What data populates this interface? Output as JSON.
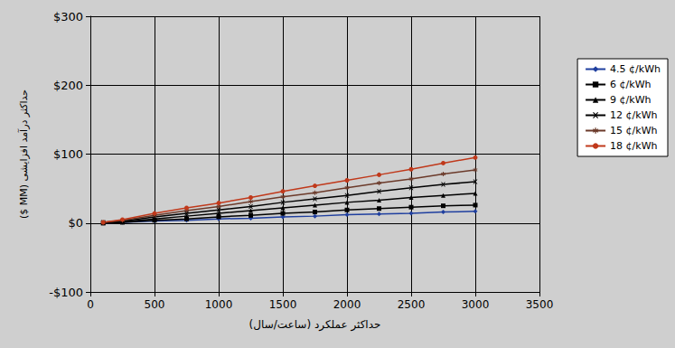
{
  "chart_data": {
    "type": "line",
    "x_label": "حداکثر عملکرد (ساعت/سال)",
    "y_label": "($ MM) حداکثر درآمد افزایشی",
    "x": [
      100,
      250,
      500,
      750,
      1000,
      1250,
      1500,
      1750,
      2000,
      2250,
      2500,
      2750,
      3000
    ],
    "series": [
      {
        "name": "4.5 ¢/kWh",
        "color": "#1f3f9f",
        "marker": "diamond",
        "values": [
          0,
          1,
          3,
          4,
          6,
          7,
          9,
          10,
          12,
          13,
          14,
          16,
          17
        ]
      },
      {
        "name": "6 ¢/kWh",
        "color": "#000000",
        "marker": "square",
        "values": [
          0,
          1,
          4,
          6,
          9,
          11,
          14,
          16,
          19,
          21,
          23,
          25,
          26
        ]
      },
      {
        "name": "9 ¢/kWh",
        "color": "#000000",
        "marker": "triangle",
        "values": [
          0,
          2,
          6,
          10,
          14,
          18,
          22,
          26,
          30,
          33,
          37,
          40,
          43
        ]
      },
      {
        "name": "12 ¢/kWh",
        "color": "#000000",
        "marker": "x",
        "values": [
          1,
          3,
          9,
          14,
          19,
          24,
          30,
          35,
          40,
          46,
          51,
          56,
          60
        ]
      },
      {
        "name": "15 ¢/kWh",
        "color": "#6b3a2a",
        "marker": "star",
        "values": [
          1,
          4,
          11,
          18,
          24,
          31,
          38,
          44,
          51,
          58,
          64,
          71,
          77
        ]
      },
      {
        "name": "18 ¢/kWh",
        "color": "#c0391b",
        "marker": "circle",
        "values": [
          1,
          5,
          14,
          22,
          29,
          37,
          46,
          54,
          62,
          70,
          78,
          87,
          95
        ]
      }
    ],
    "xlim": [
      0,
      3500
    ],
    "xticks": [
      0,
      500,
      1000,
      1500,
      2000,
      2500,
      3000,
      3500
    ],
    "ylim": [
      -100,
      300
    ],
    "yticks": [
      {
        "value": -100,
        "label": "-$100"
      },
      {
        "value": 0,
        "label": "$0"
      },
      {
        "value": 100,
        "label": "$100"
      },
      {
        "value": 200,
        "label": "$200"
      },
      {
        "value": 300,
        "label": "$300"
      }
    ],
    "grid": true,
    "legend": "right"
  }
}
